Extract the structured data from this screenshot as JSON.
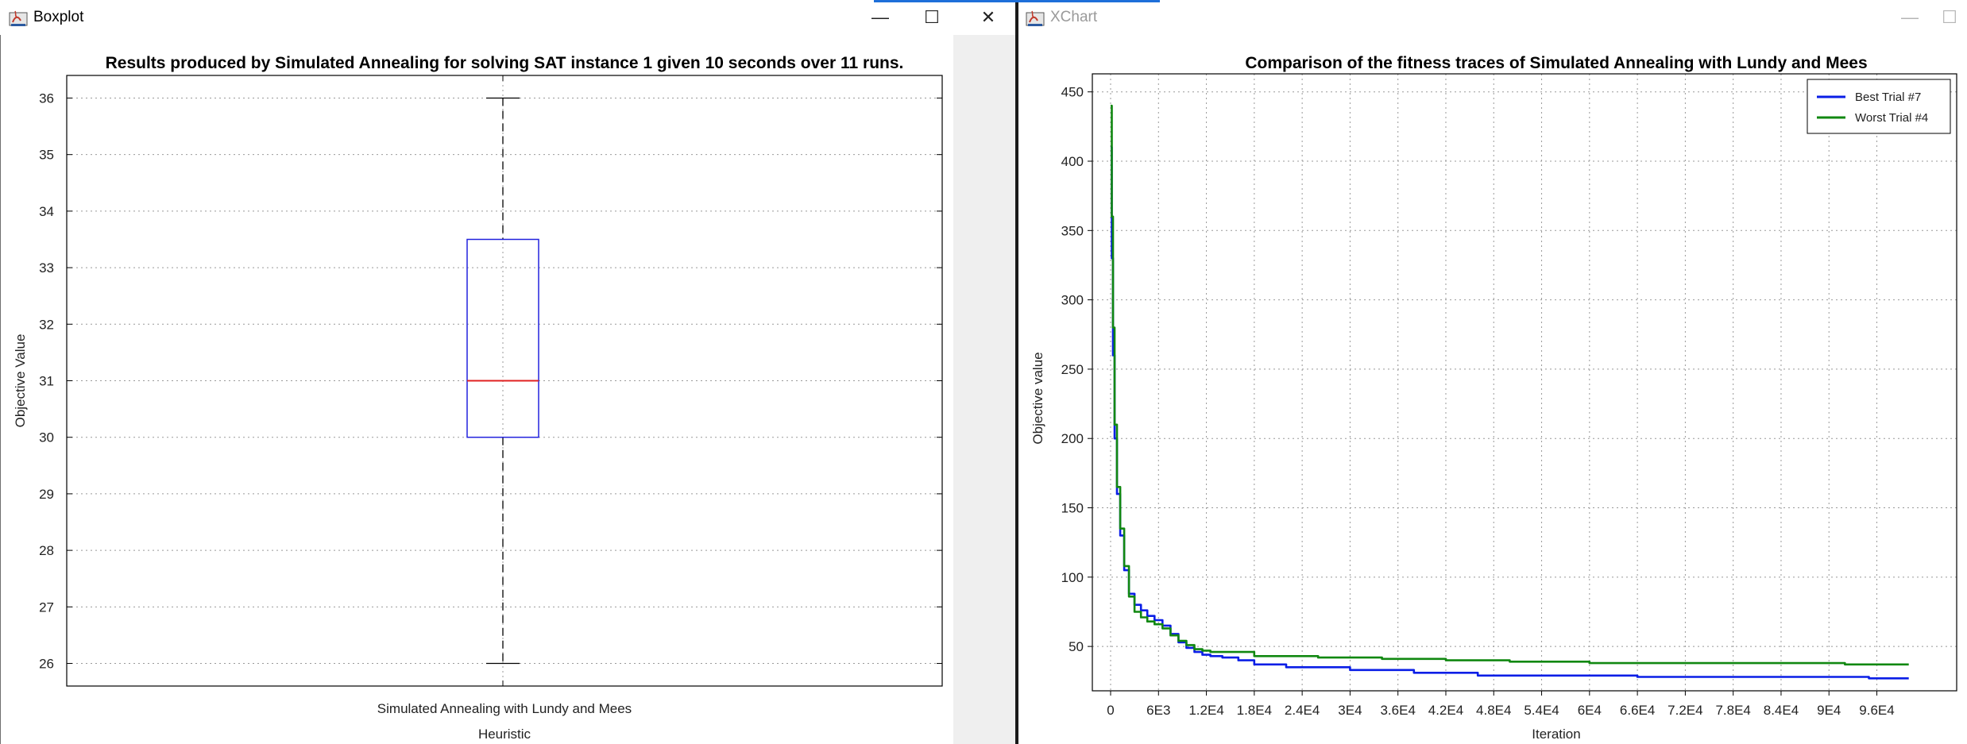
{
  "left_window": {
    "title": "Boxplot",
    "controls": {
      "minimize": "—",
      "maximize": "☐",
      "close": "✕"
    }
  },
  "right_window": {
    "title": "XChart",
    "controls": {
      "minimize": "—",
      "maximize": "☐"
    }
  },
  "chart_data": [
    {
      "type": "boxplot",
      "title": "Results produced by Simulated Annealing for solving SAT instance 1 given 10 seconds over 11 runs.",
      "xlabel": "Heuristic",
      "ylabel": "Objective Value",
      "categories": [
        "Simulated Annealing with Lundy and Mees"
      ],
      "ylim": [
        25.6,
        36.4
      ],
      "yticks": [
        "26",
        "27",
        "28",
        "29",
        "30",
        "31",
        "32",
        "33",
        "34",
        "35",
        "36"
      ],
      "grid": true,
      "boxes": [
        {
          "min": 26,
          "q1": 30,
          "median": 31,
          "q3": 33.5,
          "max": 36
        }
      ],
      "colors": {
        "box": "#2222dd",
        "median": "#e02020",
        "whisker": "#000000"
      }
    },
    {
      "type": "line",
      "title": "Comparison of the fitness traces of Simulated Annealing with Lundy and Mees",
      "xlabel": "Iteration",
      "ylabel": "Objective value",
      "xlim": [
        0,
        106000
      ],
      "ylim": [
        18,
        463
      ],
      "xticks": [
        {
          "label": "0",
          "value": 0
        },
        {
          "label": "6E3",
          "value": 6000
        },
        {
          "label": "1.2E4",
          "value": 12000
        },
        {
          "label": "1.8E4",
          "value": 18000
        },
        {
          "label": "2.4E4",
          "value": 24000
        },
        {
          "label": "3E4",
          "value": 30000
        },
        {
          "label": "3.6E4",
          "value": 36000
        },
        {
          "label": "4.2E4",
          "value": 42000
        },
        {
          "label": "4.8E4",
          "value": 48000
        },
        {
          "label": "5.4E4",
          "value": 54000
        },
        {
          "label": "6E4",
          "value": 60000
        },
        {
          "label": "6.6E4",
          "value": 66000
        },
        {
          "label": "7.2E4",
          "value": 72000
        },
        {
          "label": "7.8E4",
          "value": 78000
        },
        {
          "label": "8.4E4",
          "value": 84000
        },
        {
          "label": "9E4",
          "value": 90000
        },
        {
          "label": "9.6E4",
          "value": 96000
        }
      ],
      "yticks": [
        {
          "label": "50",
          "value": 50
        },
        {
          "label": "100",
          "value": 100
        },
        {
          "label": "150",
          "value": 150
        },
        {
          "label": "200",
          "value": 200
        },
        {
          "label": "250",
          "value": 250
        },
        {
          "label": "300",
          "value": 300
        },
        {
          "label": "350",
          "value": 350
        },
        {
          "label": "400",
          "value": 400
        },
        {
          "label": "450",
          "value": 450
        }
      ],
      "grid": true,
      "legend_position": "top-right",
      "series": [
        {
          "name": "Best Trial #7",
          "color": "#0a1ee6",
          "x": [
            0,
            150,
            300,
            500,
            800,
            1200,
            1700,
            2300,
            3000,
            3800,
            4600,
            5500,
            6500,
            7500,
            8500,
            9500,
            10500,
            11500,
            12500,
            14000,
            16000,
            18000,
            22000,
            30000,
            38000,
            46000,
            56000,
            66000,
            76000,
            86000,
            95000,
            100000
          ],
          "y": [
            410,
            330,
            260,
            200,
            160,
            130,
            105,
            88,
            80,
            76,
            72,
            69,
            65,
            59,
            53,
            49,
            46,
            44,
            43,
            42,
            40,
            37,
            35,
            33,
            31,
            29,
            29,
            28,
            28,
            28,
            27,
            27
          ]
        },
        {
          "name": "Worst Trial #4",
          "color": "#118811",
          "x": [
            0,
            150,
            300,
            500,
            800,
            1200,
            1700,
            2300,
            3000,
            3800,
            4600,
            5500,
            6500,
            7500,
            8500,
            9500,
            10500,
            11500,
            12500,
            14000,
            18000,
            26000,
            34000,
            42000,
            50000,
            60000,
            70000,
            80000,
            85000,
            92000,
            100000
          ],
          "y": [
            440,
            360,
            280,
            210,
            165,
            135,
            108,
            86,
            75,
            71,
            68,
            66,
            63,
            58,
            54,
            51,
            48,
            47,
            46,
            46,
            43,
            42,
            41,
            40,
            39,
            38,
            38,
            38,
            38,
            37,
            37
          ]
        }
      ]
    }
  ]
}
